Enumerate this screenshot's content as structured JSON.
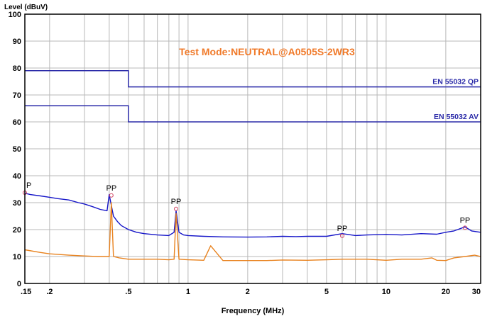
{
  "chart_data": {
    "type": "line",
    "title": "Test Mode:NEUTRAL@A0505S-2WR3",
    "xlabel": "Frequency (MHz)",
    "ylabel": "Level (dBuV)",
    "xscale": "log",
    "xlim": [
      0.15,
      30
    ],
    "ylim": [
      0,
      100
    ],
    "grid": true,
    "y_ticks": [
      0,
      10,
      20,
      30,
      40,
      50,
      60,
      70,
      80,
      90,
      100
    ],
    "x_ticks": [
      {
        "value": 0.15,
        "label": ".15"
      },
      {
        "value": 0.2,
        "label": ".2"
      },
      {
        "value": 0.5,
        "label": ".5"
      },
      {
        "value": 1,
        "label": "1"
      },
      {
        "value": 2,
        "label": "2"
      },
      {
        "value": 5,
        "label": "5"
      },
      {
        "value": 10,
        "label": "10"
      },
      {
        "value": 20,
        "label": "20"
      },
      {
        "value": 30,
        "label": "30"
      }
    ],
    "x_minor_grid": [
      0.3,
      0.4,
      0.6,
      0.7,
      0.8,
      0.9,
      3,
      4,
      6,
      7,
      8,
      9
    ],
    "limit_lines": [
      {
        "name": "EN 55032 QP",
        "color": "#2a2aa8",
        "points": [
          [
            0.15,
            79
          ],
          [
            0.5,
            79
          ],
          [
            0.5,
            73
          ],
          [
            30,
            73
          ]
        ]
      },
      {
        "name": "EN 55032 AV",
        "color": "#2a2aa8",
        "points": [
          [
            0.15,
            66
          ],
          [
            0.5,
            66
          ],
          [
            0.5,
            60
          ],
          [
            30,
            60
          ]
        ]
      }
    ],
    "series": [
      {
        "color": "#1515c8",
        "x": [
          0.15,
          0.16,
          0.18,
          0.2,
          0.22,
          0.25,
          0.28,
          0.3,
          0.33,
          0.36,
          0.39,
          0.4,
          0.42,
          0.44,
          0.46,
          0.5,
          0.55,
          0.6,
          0.7,
          0.8,
          0.85,
          0.87,
          0.9,
          0.95,
          1,
          1.2,
          1.5,
          2,
          2.5,
          3,
          3.5,
          4,
          5,
          6,
          7,
          8,
          10,
          12,
          15,
          18,
          20,
          22,
          25,
          27,
          30
        ],
        "y": [
          33.5,
          33,
          32.5,
          32,
          31.5,
          31,
          30,
          29.5,
          28.5,
          27.5,
          27,
          33,
          25,
          23,
          21.5,
          20,
          19,
          18.5,
          18,
          17.8,
          19,
          27,
          19,
          18,
          17.8,
          17.5,
          17.3,
          17.2,
          17.3,
          17.5,
          17.4,
          17.5,
          17.5,
          18.5,
          17.8,
          18,
          18.2,
          18,
          18.5,
          18.3,
          19,
          19.5,
          21,
          19.5,
          19
        ]
      },
      {
        "color": "#e8821e",
        "x": [
          0.15,
          0.18,
          0.2,
          0.25,
          0.3,
          0.35,
          0.4,
          0.41,
          0.42,
          0.45,
          0.5,
          0.6,
          0.7,
          0.8,
          0.85,
          0.87,
          0.9,
          1,
          1.2,
          1.3,
          1.5,
          2,
          2.5,
          3,
          4,
          5,
          6,
          8,
          10,
          12,
          15,
          17,
          18,
          20,
          22,
          25,
          28,
          30
        ],
        "y": [
          12.5,
          11.5,
          11,
          10.5,
          10.2,
          10,
          10,
          30,
          10,
          9.5,
          9,
          9,
          9,
          8.8,
          9,
          26,
          9,
          8.8,
          8.6,
          14,
          8.5,
          8.5,
          8.5,
          8.7,
          8.6,
          8.8,
          9,
          9,
          8.6,
          9,
          9,
          9.5,
          8.6,
          8.5,
          9.5,
          10,
          10.5,
          10
        ]
      }
    ],
    "markers": [
      {
        "label": "P",
        "x": 0.15,
        "y": 35
      },
      {
        "label": "PP",
        "x": 0.41,
        "y": 34
      },
      {
        "label": "PP",
        "x": 0.87,
        "y": 29
      },
      {
        "label": "PP",
        "x": 6.0,
        "y": 19
      },
      {
        "label": "PP",
        "x": 25,
        "y": 22
      }
    ]
  },
  "colors": {
    "axis": "#000000",
    "grid": "#b8b8b8",
    "title": "#f07a2a",
    "limit_label": "#2a2aa8"
  }
}
